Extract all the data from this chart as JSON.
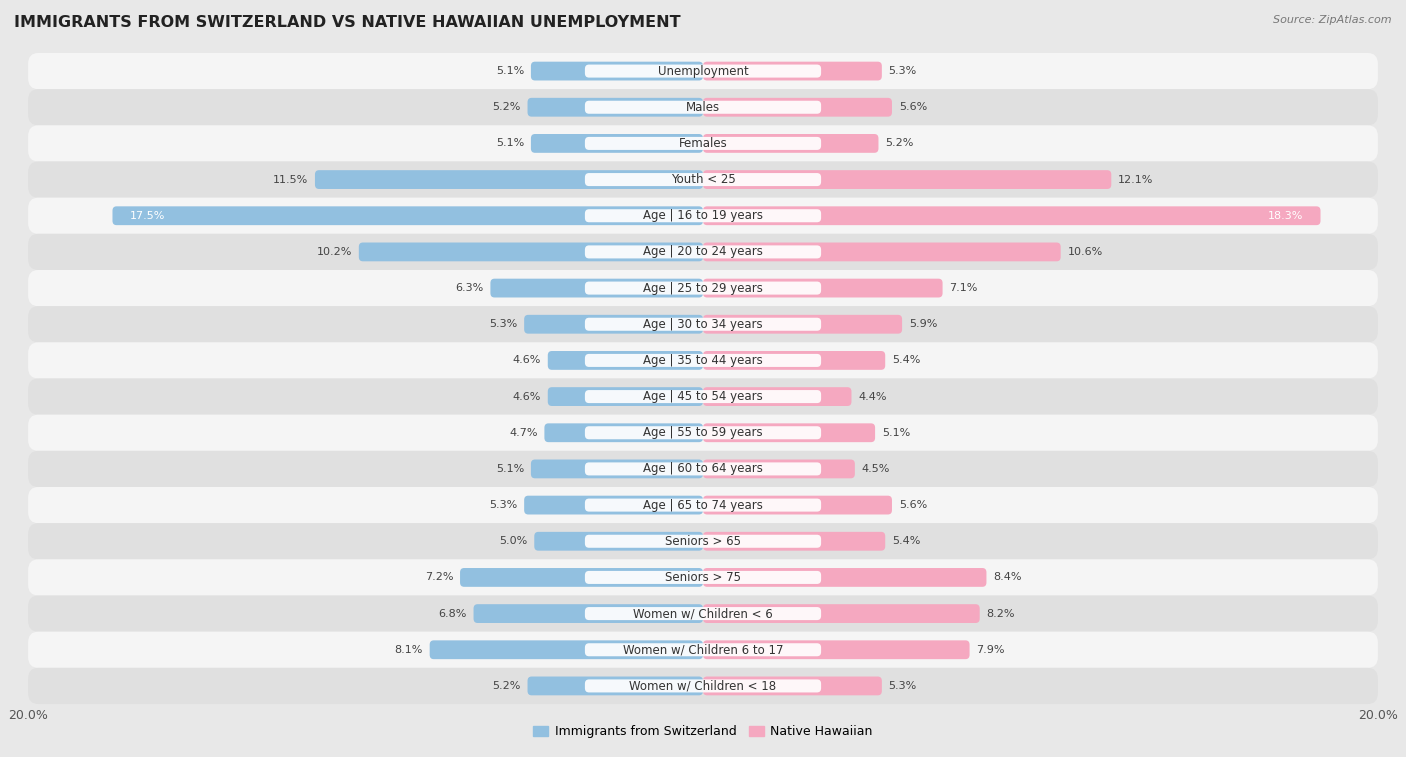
{
  "title": "IMMIGRANTS FROM SWITZERLAND VS NATIVE HAWAIIAN UNEMPLOYMENT",
  "source": "Source: ZipAtlas.com",
  "categories": [
    "Unemployment",
    "Males",
    "Females",
    "Youth < 25",
    "Age | 16 to 19 years",
    "Age | 20 to 24 years",
    "Age | 25 to 29 years",
    "Age | 30 to 34 years",
    "Age | 35 to 44 years",
    "Age | 45 to 54 years",
    "Age | 55 to 59 years",
    "Age | 60 to 64 years",
    "Age | 65 to 74 years",
    "Seniors > 65",
    "Seniors > 75",
    "Women w/ Children < 6",
    "Women w/ Children 6 to 17",
    "Women w/ Children < 18"
  ],
  "switzerland_values": [
    5.1,
    5.2,
    5.1,
    11.5,
    17.5,
    10.2,
    6.3,
    5.3,
    4.6,
    4.6,
    4.7,
    5.1,
    5.3,
    5.0,
    7.2,
    6.8,
    8.1,
    5.2
  ],
  "native_hawaiian_values": [
    5.3,
    5.6,
    5.2,
    12.1,
    18.3,
    10.6,
    7.1,
    5.9,
    5.4,
    4.4,
    5.1,
    4.5,
    5.6,
    5.4,
    8.4,
    8.2,
    7.9,
    5.3
  ],
  "switzerland_color": "#92c0e0",
  "native_hawaiian_color": "#f5a8c0",
  "switzerland_color_dark": "#5a9fd4",
  "native_hawaiian_color_dark": "#f06090",
  "switzerland_label": "Immigrants from Switzerland",
  "native_hawaiian_label": "Native Hawaiian",
  "bar_height": 0.52,
  "xlim": 20.0,
  "bg_color": "#e8e8e8",
  "row_bg_white": "#f5f5f5",
  "row_bg_gray": "#e0e0e0",
  "title_fontsize": 11.5,
  "label_fontsize": 8.5,
  "value_fontsize": 8.0,
  "source_fontsize": 8.0
}
